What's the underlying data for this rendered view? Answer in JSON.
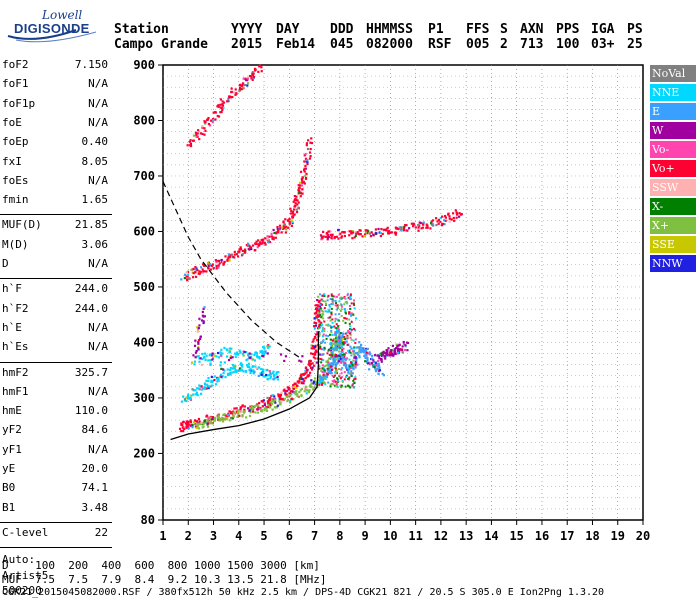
{
  "logo": {
    "line1": "Lowell",
    "line2": "DIGISONDE"
  },
  "header": {
    "station_label": "Station",
    "station_name": "Campo Grande",
    "cols": [
      {
        "label": "YYYY",
        "value": "2015"
      },
      {
        "label": "DAY",
        "value": "Feb14"
      },
      {
        "label": "DDD",
        "value": "045"
      },
      {
        "label": "HHMMSS",
        "value": "082000"
      },
      {
        "label": "P1",
        "value": "RSF"
      },
      {
        "label": "FFS",
        "value": "005"
      },
      {
        "label": "S",
        "value": "2"
      },
      {
        "label": "AXN",
        "value": "713"
      },
      {
        "label": "PPS",
        "value": "100"
      },
      {
        "label": "IGA",
        "value": "03+"
      },
      {
        "label": "PS",
        "value": "25"
      }
    ]
  },
  "params": {
    "group1": [
      {
        "k": "foF2",
        "v": "7.150"
      },
      {
        "k": "foF1",
        "v": "N/A"
      },
      {
        "k": "foF1p",
        "v": "N/A"
      },
      {
        "k": "foE",
        "v": "N/A"
      },
      {
        "k": "foEp",
        "v": "0.40"
      },
      {
        "k": "fxI",
        "v": "8.05"
      },
      {
        "k": "foEs",
        "v": "N/A"
      },
      {
        "k": "fmin",
        "v": "1.65"
      }
    ],
    "group2": [
      {
        "k": "MUF(D)",
        "v": "21.85"
      },
      {
        "k": "M(D)",
        "v": "3.06"
      },
      {
        "k": "D",
        "v": "N/A"
      }
    ],
    "group3": [
      {
        "k": "h`F",
        "v": "244.0"
      },
      {
        "k": "h`F2",
        "v": "244.0"
      },
      {
        "k": "h`E",
        "v": "N/A"
      },
      {
        "k": "h`Es",
        "v": "N/A"
      }
    ],
    "group4": [
      {
        "k": "hmF2",
        "v": "325.7"
      },
      {
        "k": "hmF1",
        "v": "N/A"
      },
      {
        "k": "hmE",
        "v": "110.0"
      },
      {
        "k": "yF2",
        "v": "84.6"
      },
      {
        "k": "yF1",
        "v": "N/A"
      },
      {
        "k": "yE",
        "v": "20.0"
      },
      {
        "k": "B0",
        "v": "74.1"
      },
      {
        "k": "B1",
        "v": "3.48"
      }
    ],
    "clevel": {
      "k": "C-level",
      "v": "22"
    },
    "auto_lines": [
      "Auto:",
      "Artist5",
      "500200"
    ]
  },
  "legend": [
    {
      "label": "NoVal",
      "color": "#808080"
    },
    {
      "label": "NNE",
      "color": "#00d8ff"
    },
    {
      "label": "E",
      "color": "#3aa0ff"
    },
    {
      "label": "W",
      "color": "#a000a0"
    },
    {
      "label": "Vo-",
      "color": "#ff44b0"
    },
    {
      "label": "Vo+",
      "color": "#ff0033"
    },
    {
      "label": "SSW",
      "color": "#ffb0b0"
    },
    {
      "label": "X-",
      "color": "#008000"
    },
    {
      "label": "X+",
      "color": "#80c040"
    },
    {
      "label": "SSE",
      "color": "#c8c800"
    },
    {
      "label": "NNW",
      "color": "#2020e0"
    }
  ],
  "footer": {
    "line1": "D    100  200  400  600  800 1000 1500 3000 [km]",
    "line2": "MUF  7.5  7.5  7.9  8.4  9.2 10.3 13.5 21.8 [MHz]",
    "line3": "CGK21_2015045082000.RSF / 380fx512h 50 kHz 2.5 km / DPS-4D CGK21 821 / 20.5 S 305.0 E Ion2Png 1.3.20"
  },
  "chart_data": {
    "type": "scatter",
    "xlim": [
      1,
      20
    ],
    "ylim": [
      80,
      900
    ],
    "x_ticks": [
      1,
      2,
      3,
      4,
      5,
      6,
      7,
      8,
      9,
      10,
      11,
      12,
      13,
      14,
      15,
      16,
      17,
      18,
      19,
      20
    ],
    "y_ticks": [
      80,
      200,
      300,
      400,
      500,
      600,
      700,
      800,
      900
    ],
    "grid": true,
    "legend_position": "right",
    "traces": [
      {
        "name": "O-trace F2",
        "color": "#ff0033",
        "points": [
          [
            1.7,
            250
          ],
          [
            2,
            255
          ],
          [
            3,
            265
          ],
          [
            4,
            278
          ],
          [
            5,
            292
          ],
          [
            5.5,
            302
          ],
          [
            6,
            315
          ],
          [
            6.5,
            335
          ],
          [
            6.8,
            360
          ],
          [
            7,
            400
          ],
          [
            7.05,
            450
          ],
          [
            7.15,
            480
          ]
        ]
      },
      {
        "name": "X-trace F2",
        "color": "#80c040",
        "points": [
          [
            2.3,
            252
          ],
          [
            3,
            262
          ],
          [
            4,
            272
          ],
          [
            5,
            285
          ],
          [
            6,
            300
          ],
          [
            6.8,
            320
          ],
          [
            7.3,
            340
          ],
          [
            7.7,
            380
          ],
          [
            7.9,
            420
          ]
        ]
      },
      {
        "name": "Oblique spread",
        "color": "#3aa0ff",
        "points": [
          [
            7.2,
            330
          ],
          [
            7.6,
            360
          ],
          [
            8,
            380
          ],
          [
            8.4,
            350
          ],
          [
            8.8,
            395
          ],
          [
            9.2,
            370
          ],
          [
            9.6,
            345
          ],
          [
            7.8,
            420
          ],
          [
            8.2,
            400
          ],
          [
            7.4,
            390
          ]
        ]
      },
      {
        "name": "Diffuse echoes",
        "color": "#00d8ff",
        "points": [
          [
            1.8,
            300
          ],
          [
            2.5,
            320
          ],
          [
            3.2,
            340
          ],
          [
            4,
            360
          ],
          [
            4.8,
            350
          ],
          [
            5.5,
            340
          ],
          [
            2.2,
            370
          ],
          [
            3.5,
            385
          ],
          [
            4.6,
            375
          ],
          [
            5.2,
            395
          ]
        ]
      },
      {
        "name": "Second hop",
        "color": "#ff0033",
        "points": [
          [
            1.8,
            520
          ],
          [
            2.5,
            535
          ],
          [
            3.2,
            545
          ],
          [
            4,
            565
          ],
          [
            4.8,
            580
          ],
          [
            5.5,
            600
          ],
          [
            6,
            620
          ],
          [
            6.3,
            660
          ],
          [
            6.5,
            700
          ],
          [
            6.8,
            770
          ]
        ]
      },
      {
        "name": "Third hop",
        "color": "#ff0033",
        "points": [
          [
            2,
            760
          ],
          [
            2.8,
            800
          ],
          [
            3.5,
            840
          ],
          [
            4.2,
            870
          ],
          [
            4.8,
            900
          ]
        ]
      },
      {
        "name": "Spread F band",
        "color": "#ff0033",
        "points": [
          [
            7.2,
            595
          ],
          [
            8,
            597
          ],
          [
            9,
            598
          ],
          [
            10,
            602
          ],
          [
            11,
            610
          ],
          [
            12,
            620
          ],
          [
            12.8,
            635
          ]
        ]
      },
      {
        "name": "Magenta echoes",
        "color": "#a000a0",
        "points": [
          [
            9.6,
            375
          ],
          [
            10,
            385
          ],
          [
            10.6,
            395
          ],
          [
            9.2,
            370
          ],
          [
            2.2,
            380
          ],
          [
            2.6,
            470
          ]
        ]
      }
    ],
    "profile": {
      "name": "Electron density profile",
      "points": [
        [
          1.3,
          225
        ],
        [
          2,
          235
        ],
        [
          3,
          243
        ],
        [
          4,
          250
        ],
        [
          5,
          262
        ],
        [
          6,
          280
        ],
        [
          6.8,
          300
        ],
        [
          7.1,
          320
        ],
        [
          7.15,
          360
        ],
        [
          7.15,
          420
        ]
      ]
    },
    "muf_curve": {
      "name": "MUF curve",
      "points": [
        [
          1,
          690
        ],
        [
          1.5,
          640
        ],
        [
          2,
          590
        ],
        [
          2.5,
          550
        ],
        [
          3,
          520
        ],
        [
          3.5,
          490
        ],
        [
          4,
          465
        ],
        [
          4.5,
          440
        ],
        [
          5,
          420
        ],
        [
          5.5,
          400
        ],
        [
          6,
          385
        ],
        [
          6.5,
          370
        ]
      ]
    }
  }
}
